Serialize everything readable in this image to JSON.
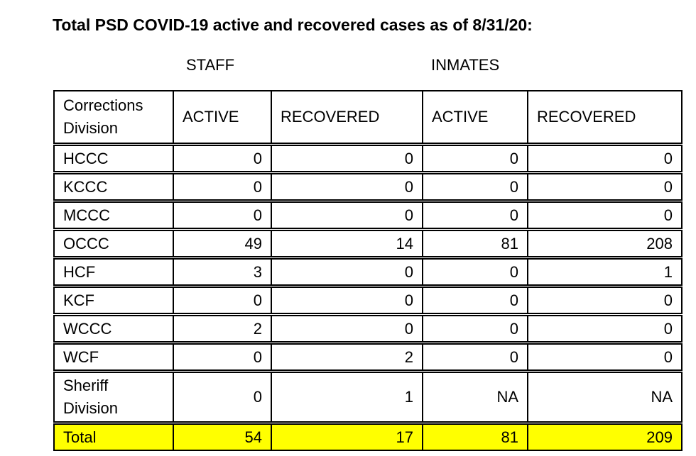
{
  "title": "Total PSD COVID-19 active and recovered cases as of 8/31/20:",
  "group_headers": {
    "staff": "STAFF",
    "inmates": "INMATES"
  },
  "table": {
    "corner_header": "Corrections Division",
    "column_headers": [
      "ACTIVE",
      "RECOVERED",
      "ACTIVE",
      "RECOVERED"
    ],
    "rows": [
      {
        "label": "HCCC",
        "values": [
          "0",
          "0",
          "0",
          "0"
        ]
      },
      {
        "label": "KCCC",
        "values": [
          "0",
          "0",
          "0",
          "0"
        ]
      },
      {
        "label": "MCCC",
        "values": [
          "0",
          "0",
          "0",
          "0"
        ]
      },
      {
        "label": "OCCC",
        "values": [
          "49",
          "14",
          "81",
          "208"
        ]
      },
      {
        "label": "HCF",
        "values": [
          "3",
          "0",
          "0",
          "1"
        ]
      },
      {
        "label": "KCF",
        "values": [
          "0",
          "0",
          "0",
          "0"
        ]
      },
      {
        "label": "WCCC",
        "values": [
          "2",
          "0",
          "0",
          "0"
        ]
      },
      {
        "label": "WCF",
        "values": [
          "0",
          "2",
          "0",
          "0"
        ]
      },
      {
        "label": "Sheriff Division",
        "values": [
          "0",
          "1",
          "NA",
          "NA"
        ]
      }
    ],
    "total_row": {
      "label": "Total",
      "values": [
        "54",
        "17",
        "81",
        "209"
      ]
    }
  },
  "colors": {
    "highlight": "#FFFF00",
    "border": "#000000",
    "text": "#000000",
    "background": "#FFFFFF"
  }
}
